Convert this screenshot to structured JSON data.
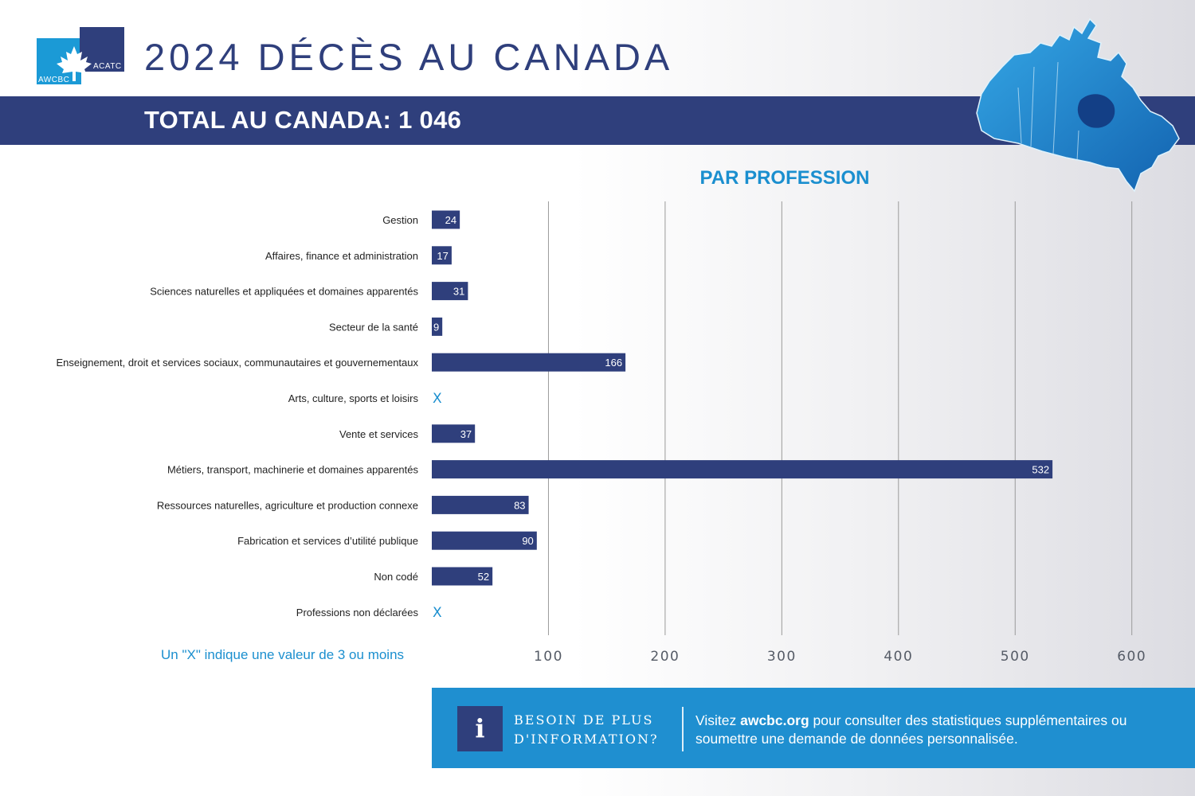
{
  "header": {
    "title": "2024 DÉCÈS AU CANADA",
    "logo_left": "AWCBC",
    "logo_right": "ACATC",
    "banner": "TOTAL AU CANADA: 1 046"
  },
  "colors": {
    "navy": "#2f3f7c",
    "blue": "#1b8fcf",
    "grid": "#999999"
  },
  "chart_data": {
    "type": "bar",
    "orientation": "horizontal",
    "title": "PAR PROFESSION",
    "categories": [
      "Gestion",
      "Affaires, finance et administration",
      "Sciences naturelles et appliquées et domaines apparentés",
      "Secteur de la santé",
      "Enseignement, droit et services sociaux, communautaires et gouvernementaux",
      "Arts, culture, sports et loisirs",
      "Vente et services",
      "Métiers, transport, machinerie et domaines apparentés",
      "Ressources naturelles, agriculture et production connexe",
      "Fabrication et services d’utilité publique",
      "Non codé",
      "Professions non déclarées"
    ],
    "values": [
      24,
      17,
      31,
      9,
      166,
      null,
      37,
      532,
      83,
      90,
      52,
      null
    ],
    "value_labels": [
      "24",
      "17",
      "31",
      "9",
      "166",
      "X",
      "37",
      "532",
      "83",
      "90",
      "52",
      "X"
    ],
    "xlim": [
      0,
      600
    ],
    "xticks": [
      100,
      200,
      300,
      400,
      500,
      600
    ],
    "xtick_labels": [
      "100",
      "200",
      "300",
      "400",
      "500",
      "600"
    ],
    "grid": true,
    "bar_color": "#2f3f7c",
    "suppressed_color": "#1b8fcf"
  },
  "note": "Un \"X\" indique une valeur de 3 ou moins",
  "info": {
    "icon": "i",
    "heading_line1": "BESOIN DE PLUS",
    "heading_line2": "D'INFORMATION?",
    "text_prefix": "Visitez ",
    "link": "awcbc.org",
    "text_suffix": " pour consulter des statistiques supplémentaires ou soumettre une demande de données personnalisée."
  }
}
